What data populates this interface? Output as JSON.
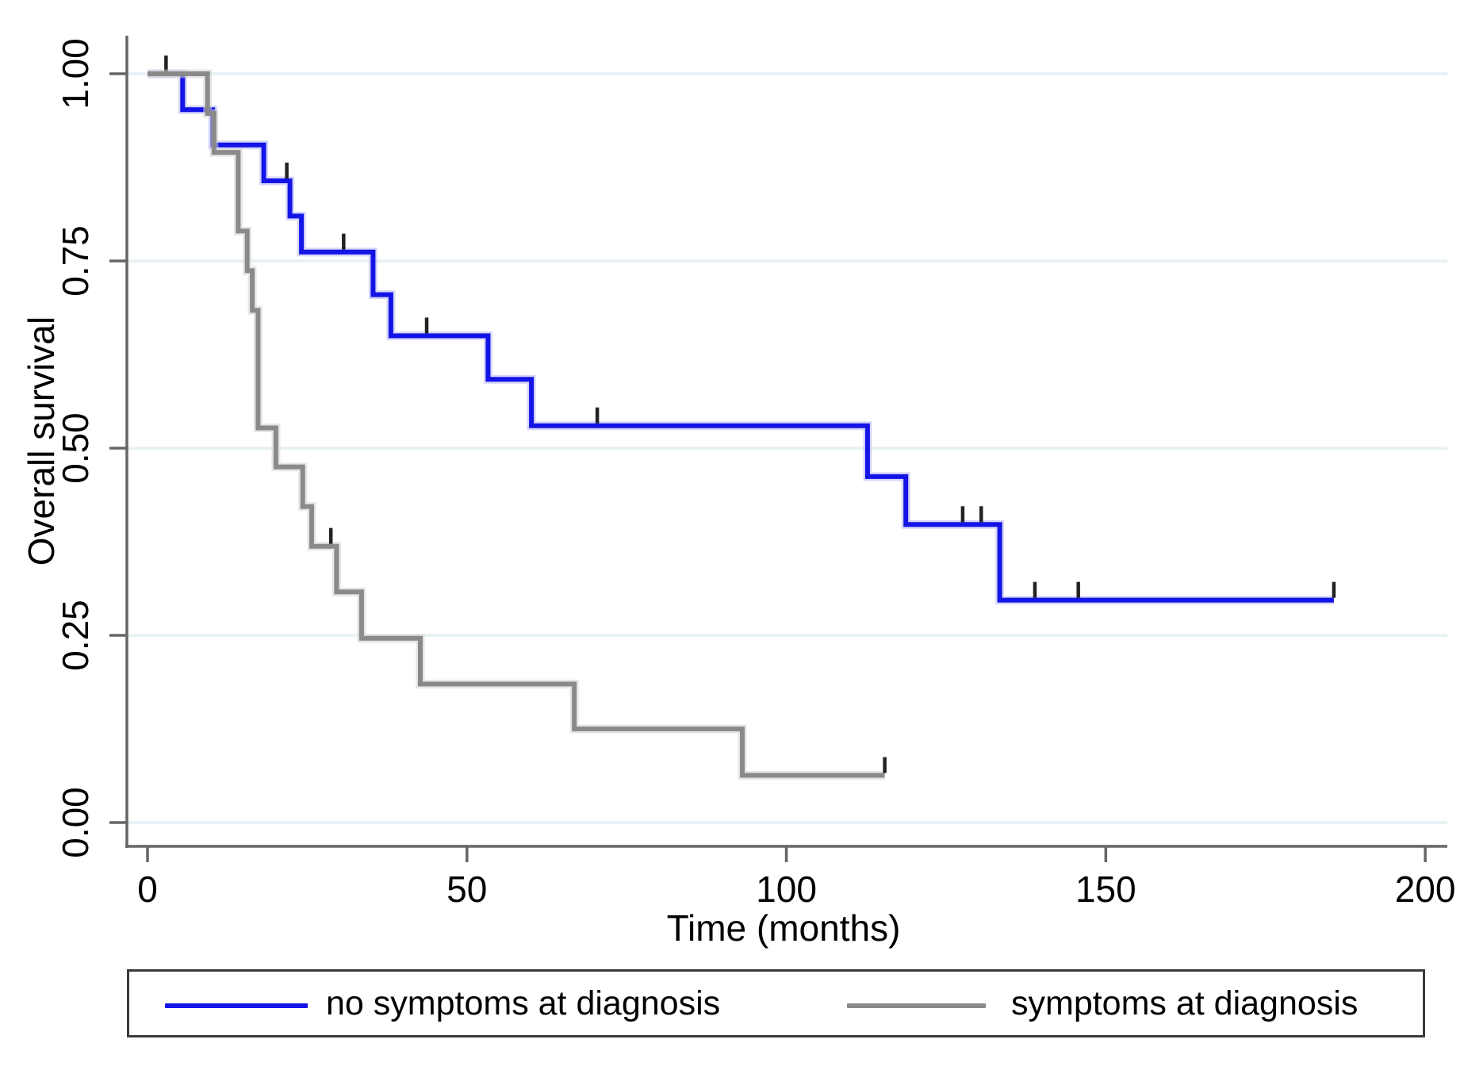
{
  "figure": {
    "y_axis_title": "Overall survival",
    "x_axis_title": "Time (months)",
    "colors": {
      "no_symptoms": "#1414e6",
      "no_symptoms_halo": "#b4b4f5",
      "symptoms": "#8a8a8a",
      "symptoms_halo": "#d2d2d2",
      "censor": "#222222",
      "gridline": "#e9f2f4",
      "axis": "#666666",
      "legend_border": "#3a3a3a",
      "text": "#000000"
    },
    "x_ticks": [
      {
        "value": 0,
        "label": "0"
      },
      {
        "value": 50,
        "label": "50"
      },
      {
        "value": 100,
        "label": "100"
      },
      {
        "value": 150,
        "label": "150"
      },
      {
        "value": 200,
        "label": "200"
      }
    ],
    "y_ticks": [
      {
        "value": 1.0,
        "label": "1.00"
      },
      {
        "value": 0.75,
        "label": "0.75"
      },
      {
        "value": 0.5,
        "label": "0.50"
      },
      {
        "value": 0.25,
        "label": "0.25"
      },
      {
        "value": 0.0,
        "label": "0.00"
      }
    ],
    "legend": {
      "items": [
        {
          "series": "no_symptoms",
          "label": "no symptoms at diagnosis"
        },
        {
          "series": "symptoms",
          "label": "symptoms at diagnosis"
        }
      ]
    }
  },
  "chart_data": {
    "type": "line",
    "subtype": "kaplan-meier-step",
    "title": "",
    "xlabel": "Time (months)",
    "ylabel": "Overall survival",
    "xlim": [
      0,
      200
    ],
    "ylim": [
      0,
      1
    ],
    "x_tick_values": [
      0,
      50,
      100,
      150,
      200
    ],
    "y_tick_values": [
      0.0,
      0.25,
      0.5,
      0.75,
      1.0
    ],
    "grid": "horizontal",
    "legend_position": "bottom",
    "series": [
      {
        "name": "no symptoms at diagnosis",
        "color_key": "no_symptoms",
        "steps": [
          [
            0,
            1.0
          ],
          [
            5.5,
            0.952
          ],
          [
            10.2,
            0.905
          ],
          [
            18.2,
            0.857
          ],
          [
            22.3,
            0.81
          ],
          [
            24.1,
            0.762
          ],
          [
            35.3,
            0.705
          ],
          [
            38.1,
            0.65
          ],
          [
            53.3,
            0.592
          ],
          [
            60.1,
            0.53
          ],
          [
            112.7,
            0.462
          ],
          [
            118.7,
            0.398
          ],
          [
            133.4,
            0.297
          ]
        ],
        "end_time": 185.7,
        "censor_marks": [
          [
            2.9,
            1.0
          ],
          [
            21.8,
            0.857
          ],
          [
            30.7,
            0.762
          ],
          [
            43.7,
            0.65
          ],
          [
            70.4,
            0.53
          ],
          [
            127.6,
            0.398
          ],
          [
            130.5,
            0.398
          ],
          [
            138.9,
            0.297
          ],
          [
            145.7,
            0.297
          ],
          [
            185.7,
            0.297
          ]
        ]
      },
      {
        "name": "symptoms at diagnosis",
        "color_key": "symptoms",
        "steps": [
          [
            0,
            1.0
          ],
          [
            9.4,
            0.947
          ],
          [
            10.4,
            0.895
          ],
          [
            14.2,
            0.79
          ],
          [
            15.6,
            0.737
          ],
          [
            16.4,
            0.684
          ],
          [
            17.3,
            0.527
          ],
          [
            20.1,
            0.475
          ],
          [
            24.3,
            0.422
          ],
          [
            25.7,
            0.369
          ],
          [
            29.6,
            0.308
          ],
          [
            33.5,
            0.246
          ],
          [
            42.7,
            0.185
          ],
          [
            66.8,
            0.125
          ],
          [
            93.1,
            0.063
          ]
        ],
        "end_time": 115.4,
        "censor_marks": [
          [
            28.7,
            0.369
          ],
          [
            115.4,
            0.063
          ]
        ]
      }
    ]
  }
}
